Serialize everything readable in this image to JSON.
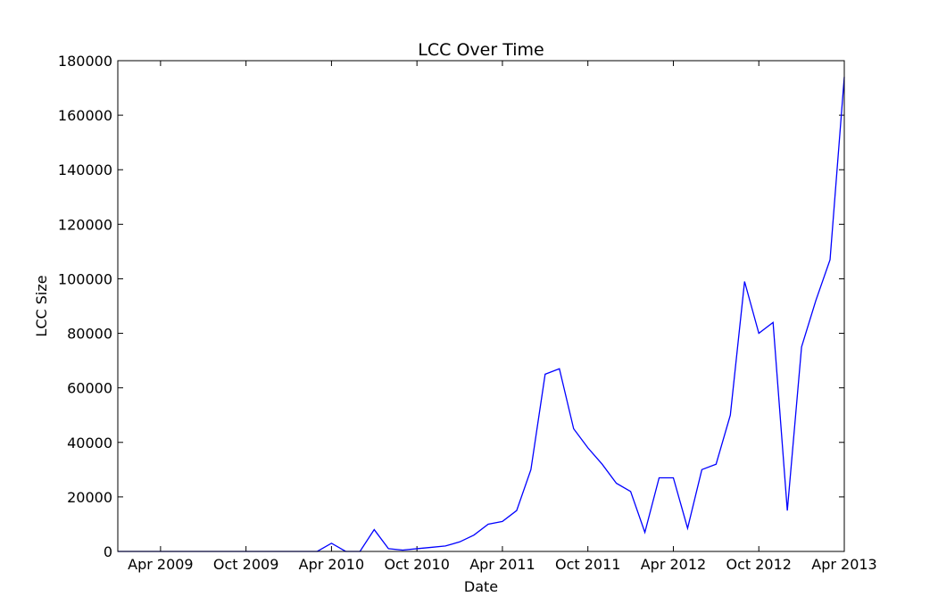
{
  "chart_data": {
    "type": "line",
    "title": "LCC Over Time",
    "x_label": "Date",
    "y_label": "LCC Size",
    "x": [
      "2009-01",
      "2009-02",
      "2009-03",
      "2009-04",
      "2009-05",
      "2009-06",
      "2009-07",
      "2009-08",
      "2009-09",
      "2009-10",
      "2009-11",
      "2009-12",
      "2010-01",
      "2010-02",
      "2010-03",
      "2010-04",
      "2010-05",
      "2010-06",
      "2010-07",
      "2010-08",
      "2010-09",
      "2010-10",
      "2010-11",
      "2010-12",
      "2011-01",
      "2011-02",
      "2011-03",
      "2011-04",
      "2011-05",
      "2011-06",
      "2011-07",
      "2011-08",
      "2011-09",
      "2011-10",
      "2011-11",
      "2011-12",
      "2012-01",
      "2012-02",
      "2012-03",
      "2012-04",
      "2012-05",
      "2012-06",
      "2012-07",
      "2012-08",
      "2012-09",
      "2012-10",
      "2012-11",
      "2012-12",
      "2013-01",
      "2013-02",
      "2013-03",
      "2013-04"
    ],
    "series": [
      {
        "name": "LCC Size",
        "color": "#0000ff",
        "values": [
          0,
          0,
          0,
          0,
          0,
          0,
          0,
          0,
          0,
          0,
          0,
          0,
          0,
          0,
          0,
          3000,
          0,
          0,
          8000,
          1000,
          500,
          1000,
          1500,
          2000,
          3500,
          6000,
          10000,
          11000,
          15000,
          30000,
          65000,
          67000,
          45000,
          38000,
          32000,
          25000,
          22000,
          7000,
          27000,
          27000,
          8500,
          30000,
          32000,
          50000,
          99000,
          80000,
          84000,
          15000,
          75000,
          92000,
          107000,
          174000
        ]
      }
    ],
    "xlim": [
      "2009-01",
      "2013-04"
    ],
    "xticks": [
      {
        "value": "2009-04",
        "label": "Apr 2009"
      },
      {
        "value": "2009-10",
        "label": "Oct 2009"
      },
      {
        "value": "2010-04",
        "label": "Apr 2010"
      },
      {
        "value": "2010-10",
        "label": "Oct 2010"
      },
      {
        "value": "2011-04",
        "label": "Apr 2011"
      },
      {
        "value": "2011-10",
        "label": "Oct 2011"
      },
      {
        "value": "2012-04",
        "label": "Apr 2012"
      },
      {
        "value": "2012-10",
        "label": "Oct 2012"
      },
      {
        "value": "2013-04",
        "label": "Apr 2013"
      }
    ],
    "ylim": [
      0,
      180000
    ],
    "yticks": [
      0,
      20000,
      40000,
      60000,
      80000,
      100000,
      120000,
      140000,
      160000,
      180000
    ],
    "grid": false
  }
}
